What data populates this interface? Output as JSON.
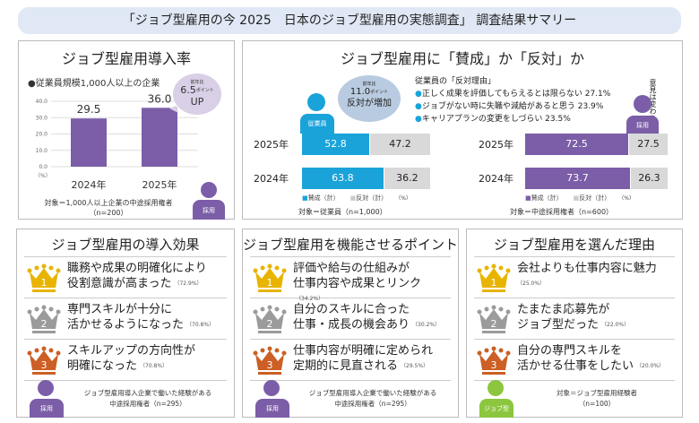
{
  "banner": {
    "title": "「ジョブ型雇用の今 2025　日本のジョブ型雇用の実態調査」 調査結果サマリー"
  },
  "colors": {
    "purple": "#7b5ea7",
    "blue": "#1aa3d9",
    "gray": "#d9d9d9",
    "gold": "#e8b400",
    "silver": "#9b9b9b",
    "bronze": "#cc5f25",
    "green": "#8cc63f",
    "banner": "#dfe8f4"
  },
  "panel1": {
    "title": "ジョブ型雇用導入率",
    "subtitle": "●従業員規模1,000人以上の企業",
    "bubble": {
      "small": "前年比",
      "value": "6.5",
      "unit": "ポイント",
      "text": "UP"
    },
    "footnote1": "対象＝1,000人以上企業の中途採用権者",
    "footnote2": "（n=200）",
    "person_label": "採用"
  },
  "panel2": {
    "title": "ジョブ型雇用に「賛成」か「反対」か",
    "employee_label": "従業員",
    "recruiter_label": "採用",
    "bubble": {
      "small": "前年比",
      "value": "11.0",
      "unit": "ポイント",
      "text": "反対が増加"
    },
    "reasons_title": "従業員の「反対理由」",
    "reasons": [
      "正しく成果を評価してもらえるとは限らない 27.1%",
      "ジョブがない時に失職や減給があると思う 23.9%",
      "キャリアプランの変更をしづらい 23.5%"
    ],
    "side_note": "意見は変わらず",
    "footnote_left": "対象＝従業員（n=1,000）",
    "footnote_right": "対象＝中途採用権者（n=600）"
  },
  "chart_data": [
    {
      "type": "bar",
      "title": "ジョブ型雇用導入率",
      "categories": [
        "2024年",
        "2025年"
      ],
      "values": [
        29.5,
        36.0
      ],
      "ylim": [
        0,
        40
      ],
      "yticks": [
        "0.0",
        "10.0",
        "20.0",
        "30.0",
        "40.0"
      ],
      "yunit": "（%）",
      "grid": true
    },
    {
      "type": "bar",
      "stacked": true,
      "orientation": "horizontal",
      "categories": [
        "2025年",
        "2024年"
      ],
      "series": [
        {
          "name": "賛成（計）",
          "values": [
            52.8,
            63.8
          ]
        },
        {
          "name": "反対（計）",
          "values": [
            47.2,
            36.2
          ]
        }
      ],
      "unit": "（%）"
    },
    {
      "type": "bar",
      "stacked": true,
      "orientation": "horizontal",
      "categories": [
        "2025年",
        "2024年"
      ],
      "series": [
        {
          "name": "賛成（計）",
          "values": [
            72.5,
            73.7
          ]
        },
        {
          "name": "反対（計）",
          "values": [
            27.5,
            26.3
          ]
        }
      ],
      "unit": "（%）"
    }
  ],
  "panels": [
    {
      "title": "ジョブ型雇用の導入効果",
      "items": [
        {
          "l1": "職務や成果の明確化により",
          "l2": "役割意識が高まった",
          "pct": "（72.9%）"
        },
        {
          "l1": "専門スキルが十分に",
          "l2": "活かせるようになった",
          "pct": "（70.8%）"
        },
        {
          "l1": "スキルアップの方向性が",
          "l2": "明確になった",
          "pct": "（70.8%）"
        }
      ],
      "foot1": "ジョブ型雇用導入企業で働いた経験がある",
      "foot2": "中途採用権者（n=295）",
      "person_label": "採用"
    },
    {
      "title": "ジョブ型雇用を機能させるポイント",
      "items": [
        {
          "l1": "評価や給与の仕組みが",
          "l2": "仕事内容や成果とリンク",
          "pct": "（34.2%）"
        },
        {
          "l1": "自分のスキルに合った",
          "l2": "仕事・成長の機会あり",
          "pct": "（30.2%）"
        },
        {
          "l1": "仕事内容が明確に定められ",
          "l2": "定期的に見直される",
          "pct": "（29.5%）"
        }
      ],
      "foot1": "ジョブ型雇用導入企業で働いた経験がある",
      "foot2": "中途採用権者（n=295）",
      "person_label": "採用"
    },
    {
      "title": "ジョブ型雇用を選んだ理由",
      "items": [
        {
          "l1": "会社よりも仕事内容に魅力",
          "l2": "",
          "pct": "（25.0%）"
        },
        {
          "l1": "たまたま応募先が",
          "l2": "ジョブ型だった",
          "pct": "（22.0%）"
        },
        {
          "l1": "自分の専門スキルを",
          "l2": "活かせる仕事をしたい",
          "pct": "（20.0%）"
        }
      ],
      "foot1": "対象＝ジョブ型雇用経験者",
      "foot2": "（n=100）",
      "person_label": "ジョブ型"
    }
  ]
}
